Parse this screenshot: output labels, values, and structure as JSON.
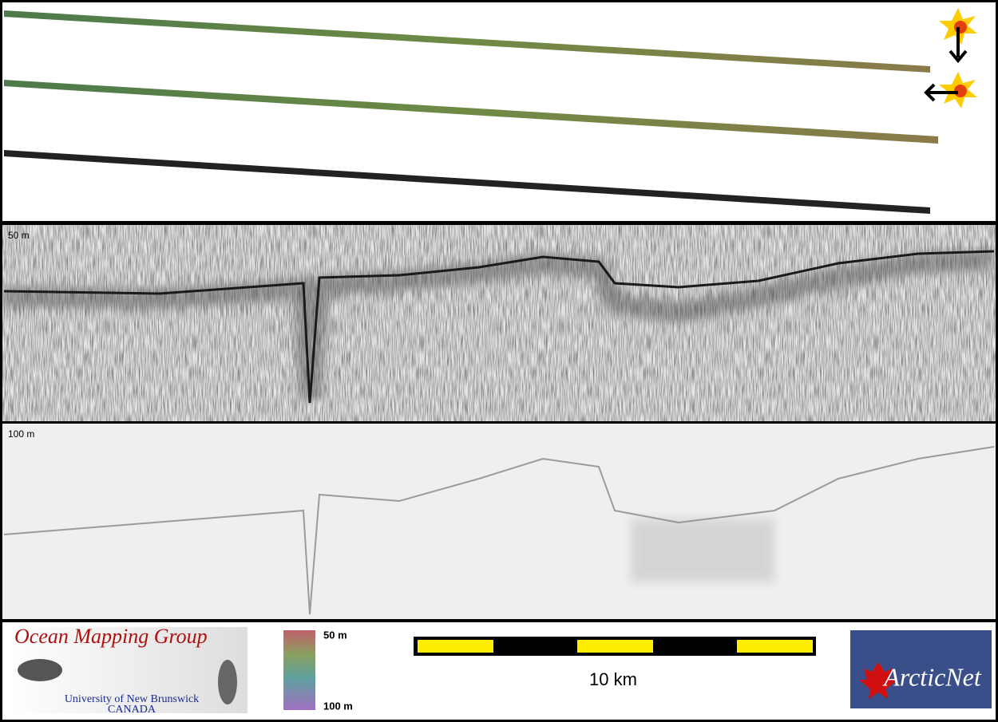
{
  "panels": {
    "upper_depth_label": "50 m",
    "lower_depth_label": "100 m"
  },
  "footer": {
    "logo_title": "Ocean Mapping Group",
    "logo_university": "University of New Brunswick",
    "logo_country": "CANADA",
    "colorbar_top": "50 m",
    "colorbar_bottom": "100 m",
    "scale_label": "10 km",
    "partner_logo": "ArcticNet"
  }
}
